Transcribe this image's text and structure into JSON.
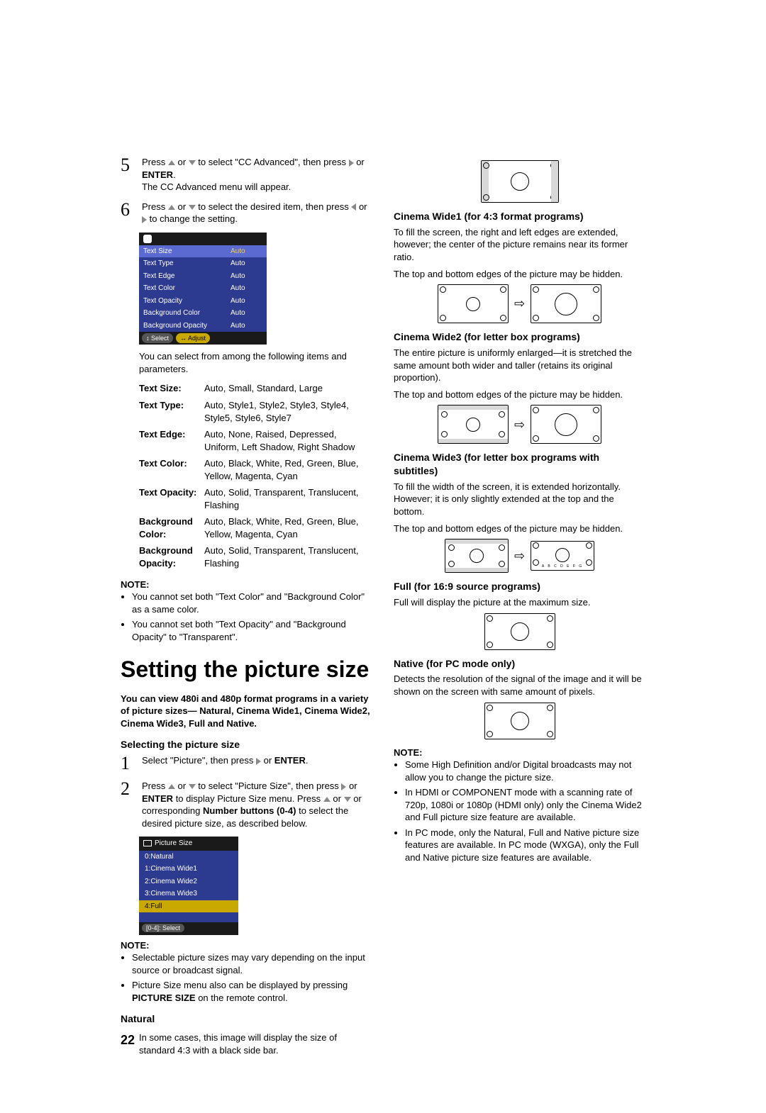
{
  "steps": {
    "s5": {
      "num": "5",
      "line1a": "Press ",
      "line1b": " or ",
      "line1c": " to select \"CC Advanced\", then press ",
      "line1d": " or ",
      "enter": "ENTER",
      "line1e": ".",
      "line2": "The CC Advanced menu will appear."
    },
    "s6": {
      "num": "6",
      "line1a": "Press ",
      "line1b": " or ",
      "line1c": " to select the desired item, then press ",
      "line1d": " or ",
      "line1e": " to change the setting."
    }
  },
  "cc_menu": {
    "rows": [
      {
        "k": "Text Size",
        "v": "Auto",
        "sel": true
      },
      {
        "k": "Text Type",
        "v": "Auto"
      },
      {
        "k": "Text Edge",
        "v": "Auto"
      },
      {
        "k": "Text Color",
        "v": "Auto"
      },
      {
        "k": "Text Opacity",
        "v": "Auto"
      },
      {
        "k": "Background Color",
        "v": "Auto"
      },
      {
        "k": "Background Opacity",
        "v": "Auto"
      }
    ],
    "footer": {
      "select": "Select",
      "adjust": "Adjust"
    }
  },
  "after_menu": "You can select from among the following items and parameters.",
  "params": [
    {
      "k": "Text Size:",
      "v": "Auto, Small, Standard, Large"
    },
    {
      "k": "Text Type:",
      "v": "Auto, Style1, Style2, Style3, Style4, Style5, Style6, Style7"
    },
    {
      "k": "Text Edge:",
      "v": "Auto, None, Raised, Depressed, Uniform, Left Shadow, Right Shadow"
    },
    {
      "k": "Text Color:",
      "v": "Auto, Black, White, Red, Green, Blue, Yellow, Magenta, Cyan"
    },
    {
      "k": "Text Opacity:",
      "v": "Auto, Solid, Transparent, Translucent, Flashing"
    },
    {
      "k": "Background Color:",
      "v": "Auto, Black, White, Red, Green, Blue, Yellow, Magenta, Cyan"
    },
    {
      "k": "Background Opacity:",
      "v": "Auto, Solid, Transparent, Translucent, Flashing"
    }
  ],
  "note1": {
    "hdr": "NOTE:",
    "items": [
      "You cannot set both \"Text Color\" and \"Background Color\" as a same color.",
      "You cannot set both \"Text Opacity\" and \"Background Opacity\" to \"Transparent\"."
    ]
  },
  "title": "Setting the picture size",
  "lead": "You can view 480i and 480p format programs in a variety of picture sizes— Natural, Cinema Wide1, Cinema Wide2, Cinema Wide3, Full and Native.",
  "sel_hdr": "Selecting the picture size",
  "pstep1": {
    "num": "1",
    "t1": "Select \"Picture\", then press ",
    "t2": " or ",
    "enter": "ENTER",
    "t3": "."
  },
  "pstep2": {
    "num": "2",
    "t1": "Press ",
    "t2": " or ",
    "t3": " to select \"Picture Size\", then press ",
    "t4": " or ",
    "enter": "ENTER",
    "t5": " to display Picture Size menu. Press ",
    "t6": " or ",
    "t7": " or corresponding ",
    "nb": "Number buttons (0-4)",
    "t8": " to select the desired picture size, as described below."
  },
  "ps_menu": {
    "title": "Picture Size",
    "items": [
      "0:Natural",
      "1:Cinema Wide1",
      "2:Cinema Wide2",
      "3:Cinema Wide3",
      "4:Full"
    ],
    "hl": 4,
    "footer": "[0-4]: Select"
  },
  "note2": {
    "hdr": "NOTE:",
    "items": [
      "Selectable picture sizes may vary depending on the input source or broadcast signal.",
      {
        "pre": "Picture Size menu also can be displayed by pressing ",
        "b": "PICTURE SIZE",
        "post": " on the remote control."
      }
    ]
  },
  "natural": {
    "hdr": "Natural",
    "txt": "In some cases, this image will display the size of standard 4:3 with a black side bar."
  },
  "page_num": "22",
  "cw1": {
    "hdr": "Cinema Wide1 (for 4:3 format programs)",
    "p1": "To fill the screen, the right and left edges are extended, however; the center of the picture remains near its former ratio.",
    "p2": "The top and bottom edges of the picture may be hidden."
  },
  "cw2": {
    "hdr": "Cinema Wide2 (for letter box programs)",
    "p1": "The entire picture is uniformly enlarged—it is stretched the same amount both wider and taller (retains its original proportion).",
    "p2": "The top and bottom edges of the picture may be hidden."
  },
  "cw3": {
    "hdr": "Cinema Wide3 (for letter box programs with subtitles)",
    "p1": "To fill the width of the screen, it is extended horizontally. However; it is only slightly extended at the top and the bottom.",
    "p2": "The top and bottom edges of the picture may be hidden."
  },
  "full": {
    "hdr": "Full (for 16:9 source programs)",
    "p1": "Full will display the picture at the maximum size."
  },
  "native": {
    "hdr": "Native (for PC mode only)",
    "p1": "Detects the resolution of the signal of the image and it will be shown on the screen with same amount of pixels."
  },
  "note3": {
    "hdr": "NOTE:",
    "items": [
      "Some High Definition and/or Digital broadcasts may not allow you to change the picture size.",
      "In HDMI or COMPONENT mode with a scanning rate of 720p, 1080i or 1080p (HDMI only) only the Cinema Wide2 and Full picture size feature are available.",
      "In PC mode, only the Natural, Full and Native picture size features are available. In PC mode (WXGA), only the Full and Native picture size features are available."
    ]
  },
  "arrow": "⇨"
}
